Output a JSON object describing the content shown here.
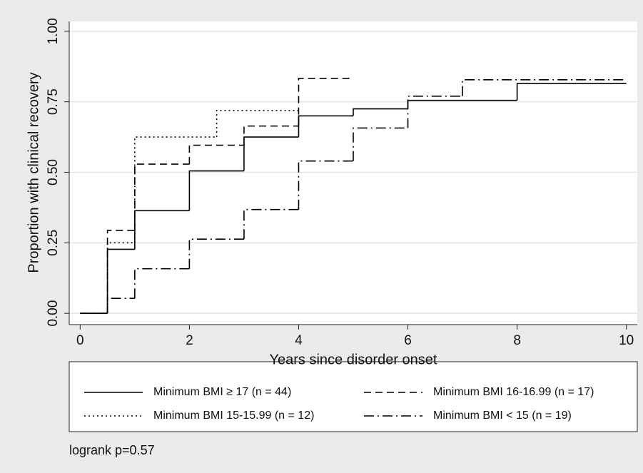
{
  "chart_data": {
    "type": "step",
    "x_label": "Years since disorder onset",
    "y_label": "Proportion with clinical recovery",
    "xlim": [
      -0.2,
      10.2
    ],
    "ylim": [
      -0.04,
      1.035
    ],
    "xticks": [
      0,
      2,
      4,
      6,
      8,
      10
    ],
    "yticks": [
      {
        "value": 0,
        "label": "0.00"
      },
      {
        "value": 0.25,
        "label": "0.25"
      },
      {
        "value": 0.5,
        "label": "0.50"
      },
      {
        "value": 0.75,
        "label": "0.75"
      },
      {
        "value": 1,
        "label": "1.00"
      }
    ],
    "grid": true,
    "series": [
      {
        "name": "Minimum BMI ≥ 17 (n = 44)",
        "color": "#000000",
        "dash": "solid",
        "x": [
          0,
          0.5,
          1,
          2,
          3,
          4,
          5,
          6,
          8,
          10
        ],
        "values": [
          0,
          0.227,
          0.364,
          0.505,
          0.625,
          0.7,
          0.725,
          0.755,
          0.815,
          0.815
        ]
      },
      {
        "name": "Minimum BMI 16-16.99 (n = 17)",
        "color": "#000000",
        "dash": "dashed",
        "x": [
          0,
          0.5,
          1,
          2,
          3,
          4,
          5
        ],
        "values": [
          0,
          0.294,
          0.529,
          0.596,
          0.664,
          0.833,
          0.833
        ]
      },
      {
        "name": "Minimum BMI 15-15.99 (n = 12)",
        "color": "#000000",
        "dash": "dotted",
        "x": [
          0,
          0.5,
          1,
          2.5,
          4
        ],
        "values": [
          0,
          0.25,
          0.625,
          0.719,
          0.719
        ]
      },
      {
        "name": "Minimum BMI < 15 (n = 19)",
        "color": "#000000",
        "dash": "dashdot",
        "x": [
          0,
          0.5,
          1,
          2,
          3,
          4,
          5,
          6,
          7,
          10
        ],
        "values": [
          0,
          0.053,
          0.158,
          0.263,
          0.368,
          0.54,
          0.657,
          0.77,
          0.828,
          0.828
        ]
      }
    ],
    "annotation": "logrank p=0.57"
  }
}
